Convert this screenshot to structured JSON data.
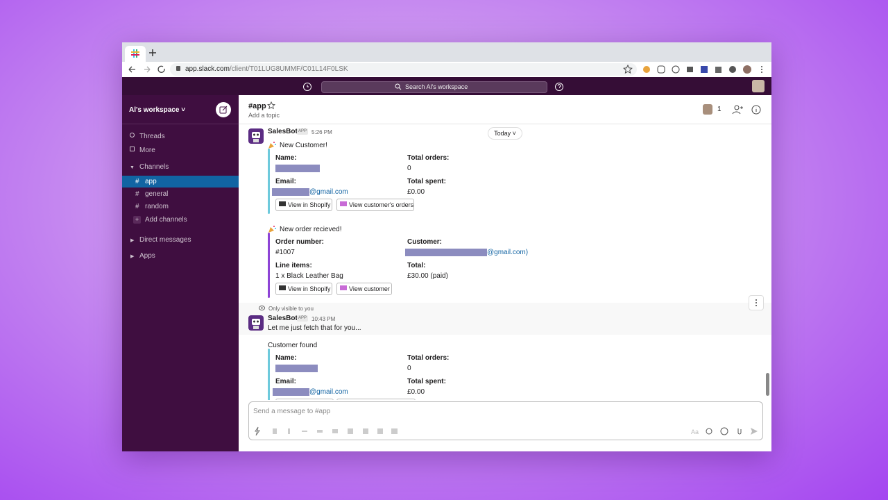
{
  "browser": {
    "url_host": "app.slack.com",
    "url_path": "/client/T01LUG8UMMF/C01L14F0LSK"
  },
  "topbar": {
    "search": "Search Al's workspace"
  },
  "sidebar": {
    "workspace": "Al's workspace",
    "items": [
      "Threads",
      "More"
    ],
    "channels_header": "Channels",
    "channel_prefix": "#",
    "channels": [
      "app",
      "general",
      "random"
    ],
    "add_channels": "Add channels",
    "sections": [
      "Direct messages",
      "Apps"
    ]
  },
  "header": {
    "channel": "#app",
    "topic": "Add a topic",
    "members": 1
  },
  "date_divider": "Today",
  "messages": [
    {
      "sender": "SalesBot",
      "badge": "APP",
      "time": "5:26 PM",
      "blocks": [
        {
          "heading": "New Customer!",
          "fields": [
            {
              "label": "Name:"
            },
            {
              "label": "Total orders:",
              "value": "0"
            },
            {
              "label": "Email:",
              "value": "@gmail.com"
            },
            {
              "label": "Total spent:",
              "value": "£0.00"
            }
          ],
          "buttons": [
            "View in Shopify",
            "View customer's orders"
          ]
        },
        {
          "heading": "New order recieved!",
          "fields": [
            {
              "label": "Order number:",
              "value": "#1007"
            },
            {
              "label": "Customer:",
              "value": "@gmail.com)"
            },
            {
              "label": "Line items:",
              "value": "1 x Black Leather Bag"
            },
            {
              "label": "Total:",
              "value": "£30.00 (paid)"
            }
          ],
          "buttons": [
            "View in Shopify",
            "View customer"
          ]
        }
      ]
    },
    {
      "note": "Only visible to you",
      "sender": "SalesBot",
      "badge": "APP",
      "time": "10:43 PM",
      "text": "Let me just fetch that for you...",
      "blocks": [
        {
          "heading": "Customer found",
          "fields": [
            {
              "label": "Name:"
            },
            {
              "label": "Total orders:",
              "value": "0"
            },
            {
              "label": "Email:",
              "value": "@gmail.com"
            },
            {
              "label": "Total spent:",
              "value": "£0.00"
            }
          ]
        }
      ]
    }
  ],
  "composer": {
    "placeholder": "Send a message to #app",
    "format": "Aa"
  }
}
